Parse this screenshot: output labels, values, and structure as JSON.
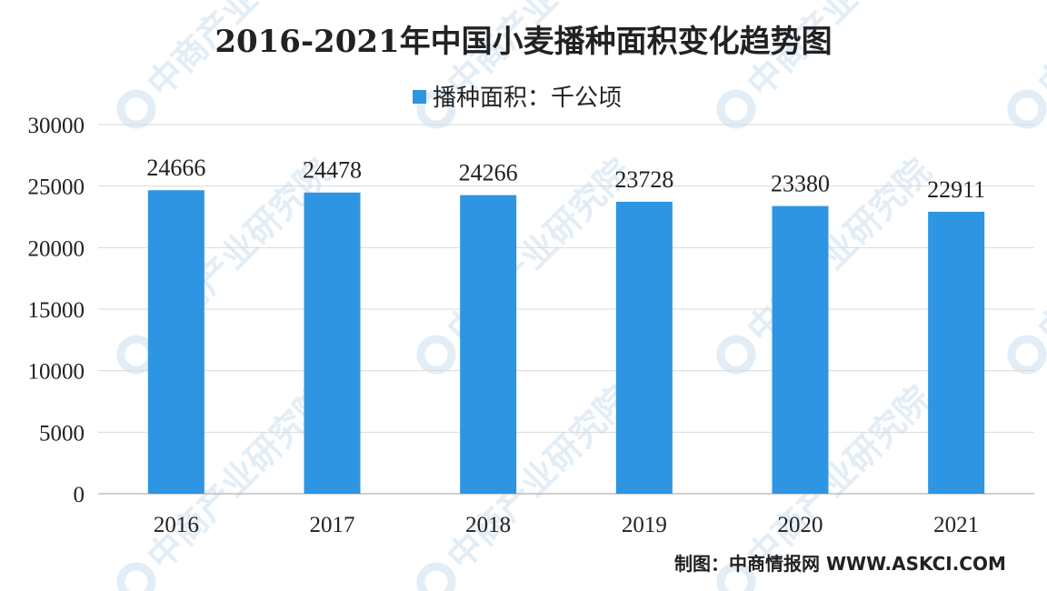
{
  "watermark": {
    "text": "中商产业研究院",
    "color": "#e3edf6"
  },
  "source": "制图：中商情报网 WWW.ASKCI.COM",
  "chart_data": {
    "type": "bar",
    "title": "2016-2021年中国小麦播种面积变化趋势图",
    "legend": {
      "position": "top",
      "entries": [
        "播种面积：千公顷"
      ]
    },
    "categories": [
      "2016",
      "2017",
      "2018",
      "2019",
      "2020",
      "2021"
    ],
    "series": [
      {
        "name": "播种面积：千公顷",
        "values": [
          24666,
          24478,
          24266,
          23728,
          23380,
          22911
        ],
        "color": "#2e95e2"
      }
    ],
    "yticks": [
      0,
      5000,
      10000,
      15000,
      20000,
      25000,
      30000
    ],
    "ylim": [
      0,
      30000
    ],
    "grid": true
  }
}
